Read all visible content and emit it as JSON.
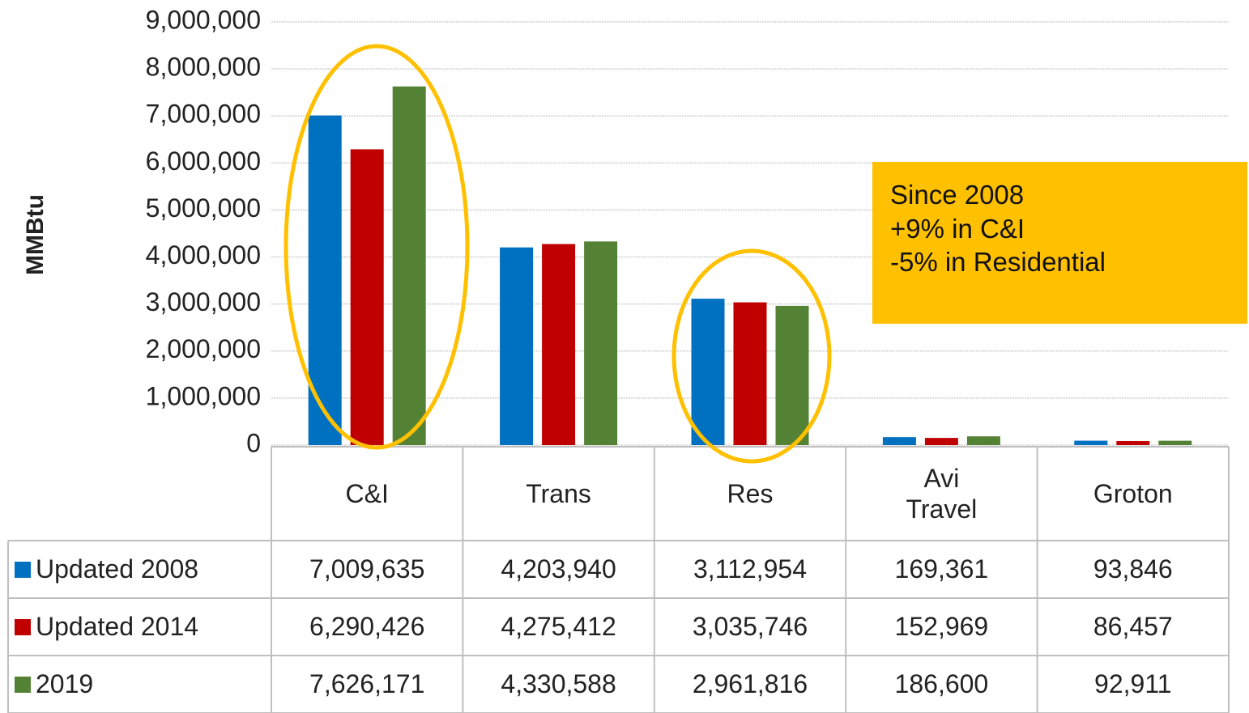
{
  "chart_data": {
    "type": "bar",
    "y_axis_label": "MMBtu",
    "categories": [
      "C&I",
      "Trans",
      "Res",
      "Avi Travel",
      "Groton"
    ],
    "series": [
      {
        "name": "Updated 2008",
        "color": "#0070C0",
        "values": [
          7009635,
          4203940,
          3112954,
          169361,
          93846
        ],
        "value_labels": [
          "7,009,635",
          "4,203,940",
          "3,112,954",
          "169,361",
          "93,846"
        ]
      },
      {
        "name": "Updated 2014",
        "color": "#C00000",
        "values": [
          6290426,
          4275412,
          3035746,
          152969,
          86457
        ],
        "value_labels": [
          "6,290,426",
          "4,275,412",
          "3,035,746",
          "152,969",
          "86,457"
        ]
      },
      {
        "name": "2019",
        "color": "#548235",
        "values": [
          7626171,
          4330588,
          2961816,
          186600,
          92911
        ],
        "value_labels": [
          "7,626,171",
          "4,330,588",
          "2,961,816",
          "186,600",
          "92,911"
        ]
      }
    ],
    "ylim": [
      0,
      9000000
    ],
    "yticks": [
      0,
      {
        "value": 1000000,
        "label": "1,000,000"
      },
      {
        "value": 2000000,
        "label": "2,000,000"
      },
      {
        "value": 3000000,
        "label": "3,000,000"
      },
      {
        "value": 4000000,
        "label": "4,000,000"
      },
      {
        "value": 5000000,
        "label": "5,000,000"
      },
      {
        "value": 6000000,
        "label": "6,000,000"
      },
      {
        "value": 7000000,
        "label": "7,000,000"
      },
      {
        "value": 8000000,
        "label": "8,000,000"
      },
      {
        "value": 9000000,
        "label": "9,000,000"
      }
    ],
    "grid": true,
    "annotation": [
      "Since 2008",
      "+9% in C&I",
      "-5% in Residential"
    ]
  }
}
